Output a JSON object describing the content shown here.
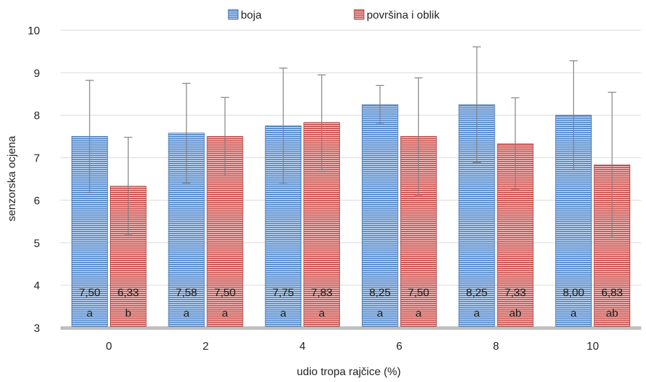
{
  "chart_data": {
    "type": "bar",
    "xlabel": "udio tropa rajčice (%)",
    "ylabel": "senzorska ocjena",
    "ylim": [
      3,
      10
    ],
    "yticks": [
      "3",
      "4",
      "5",
      "6",
      "7",
      "8",
      "9",
      "10"
    ],
    "categories": [
      "0",
      "2",
      "4",
      "6",
      "8",
      "10"
    ],
    "grid": true,
    "legend_position": "top",
    "series": [
      {
        "name": "boja",
        "color": "#4F81BD",
        "values": [
          7.5,
          7.58,
          7.75,
          8.25,
          8.25,
          8.0
        ],
        "error": [
          1.32,
          1.17,
          1.36,
          0.45,
          1.36,
          1.28
        ],
        "value_labels": [
          "7,50",
          "7,58",
          "7,75",
          "8,25",
          "8,25",
          "8,00"
        ],
        "letters": [
          "a",
          "a",
          "a",
          "a",
          "a",
          "a"
        ]
      },
      {
        "name": "površina i oblik",
        "color": "#C0504D",
        "values": [
          6.33,
          7.5,
          7.83,
          7.5,
          7.33,
          6.83
        ],
        "error": [
          1.15,
          0.92,
          1.12,
          1.38,
          1.08,
          1.71
        ],
        "value_labels": [
          "6,33",
          "7,50",
          "7,83",
          "7,50",
          "7,33",
          "6,83"
        ],
        "letters": [
          "b",
          "a",
          "a",
          "a",
          "ab",
          "ab"
        ]
      }
    ]
  }
}
